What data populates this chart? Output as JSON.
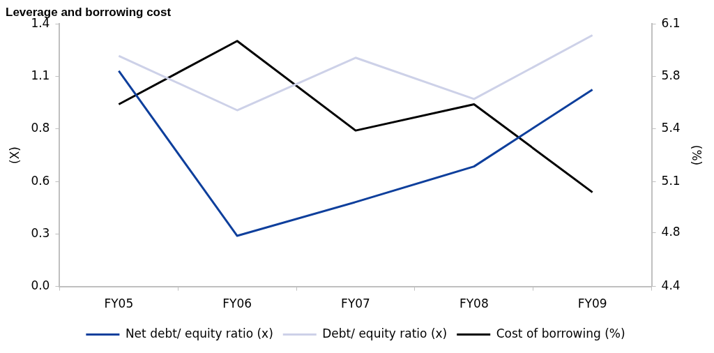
{
  "chart_data": {
    "type": "line",
    "title": "Leverage and borrowing cost",
    "ylabel": "(X)",
    "y2label": "(%)",
    "categories": [
      "FY05",
      "FY06",
      "FY07",
      "FY08",
      "FY09"
    ],
    "series": [
      {
        "name": "Net debt/ equity ratio (x)",
        "color": "#0e3f9c",
        "values": [
          1.15,
          0.27,
          0.45,
          0.64,
          1.05
        ]
      },
      {
        "name": "Debt/ equity ratio (x)",
        "color": "#cdd1e8",
        "values": [
          1.23,
          0.94,
          1.22,
          1.0,
          1.34
        ]
      },
      {
        "name": "Cost of borrowing (%)",
        "color": "#000000",
        "values": [
          5.58,
          5.99,
          5.41,
          5.58,
          5.01
        ],
        "axis": "y2"
      }
    ],
    "ylim": [
      0,
      1.4
    ],
    "yticks": [
      {
        "value": 0,
        "label": "0.0"
      },
      {
        "value": 0.28,
        "label": "0.3"
      },
      {
        "value": 0.56,
        "label": "0.6"
      },
      {
        "value": 0.84,
        "label": "0.8"
      },
      {
        "value": 1.12,
        "label": "1.1"
      },
      {
        "value": 1.4,
        "label": "1.4"
      }
    ],
    "y2lim": [
      4.4,
      6.1
    ],
    "y2ticks": [
      {
        "value": 4.4,
        "label": "4.4"
      },
      {
        "value": 4.75,
        "label": "4.8"
      },
      {
        "value": 5.08,
        "label": "5.1"
      },
      {
        "value": 5.42,
        "label": "5.4"
      },
      {
        "value": 5.76,
        "label": "5.8"
      },
      {
        "value": 6.1,
        "label": "6.1"
      }
    ],
    "grid": false,
    "legend": "bottom",
    "marker": "none",
    "line_style": "solid"
  }
}
